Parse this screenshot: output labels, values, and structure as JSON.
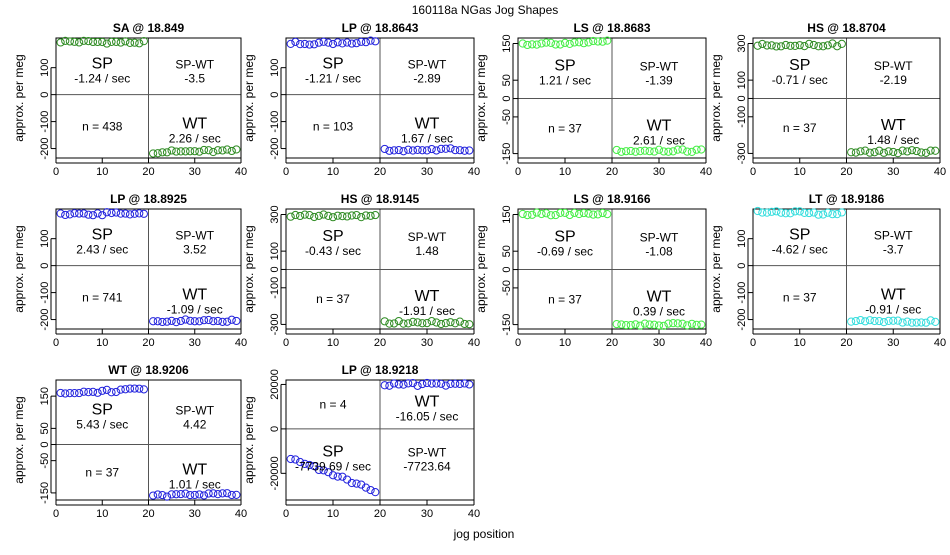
{
  "page_title": "160118a   NGas Jog Shapes",
  "x_axis_label": "jog position",
  "colors": {
    "blue": "#2222dd",
    "darkgreen": "#2e8b22",
    "lightgreen": "#44ee44",
    "cyan": "#33dddd",
    "axis": "#000000",
    "guide": "#555555"
  },
  "chart_data": [
    {
      "type": "scatter",
      "title": "SA @ 18.849",
      "ylabel": "approx. per meg",
      "xlim": [
        0,
        40
      ],
      "ylim": [
        -235,
        210
      ],
      "xticks": [
        0,
        10,
        20,
        30,
        40
      ],
      "yticks": [
        -200,
        -100,
        0,
        100
      ],
      "color": "darkgreen",
      "sp_segment": {
        "x": [
          1,
          19
        ],
        "y": [
          197,
          193
        ]
      },
      "wt_segment": {
        "x": [
          21,
          39
        ],
        "y": [
          -213,
          -208
        ]
      },
      "sp_label": "SP",
      "sp_slope": "-1.24 / sec",
      "spwt_label": "SP-WT",
      "spwt_value": "-3.5",
      "n_text": "n = 438",
      "wt_label": "WT",
      "wt_slope": "2.26 / sec",
      "label_layout": "standard"
    },
    {
      "type": "scatter",
      "title": "LP @ 18.8643",
      "ylabel": "approx. per meg",
      "xlim": [
        0,
        40
      ],
      "ylim": [
        -235,
        210
      ],
      "xticks": [
        0,
        10,
        20,
        30,
        40
      ],
      "yticks": [
        -200,
        -100,
        0,
        100
      ],
      "color": "blue",
      "sp_segment": {
        "x": [
          1,
          19
        ],
        "y": [
          190,
          195
        ]
      },
      "wt_segment": {
        "x": [
          21,
          39
        ],
        "y": [
          -206,
          -204
        ]
      },
      "sp_label": "SP",
      "sp_slope": "-1.21 / sec",
      "spwt_label": "SP-WT",
      "spwt_value": "-2.89",
      "n_text": "n = 103",
      "wt_label": "WT",
      "wt_slope": "1.67 / sec",
      "label_layout": "standard"
    },
    {
      "type": "scatter",
      "title": "LS @ 18.8683",
      "ylabel": "approx. per meg",
      "xlim": [
        0,
        40
      ],
      "ylim": [
        -162,
        165
      ],
      "xticks": [
        0,
        10,
        20,
        30,
        40
      ],
      "yticks": [
        -150,
        -50,
        0,
        50,
        150
      ],
      "color": "lightgreen",
      "sp_segment": {
        "x": [
          1,
          19
        ],
        "y": [
          149,
          154
        ]
      },
      "wt_segment": {
        "x": [
          21,
          39
        ],
        "y": [
          -144,
          -142
        ]
      },
      "sp_label": "SP",
      "sp_slope": "1.21 / sec",
      "spwt_label": "SP-WT",
      "spwt_value": "-1.39",
      "n_text": "n = 37",
      "wt_label": "WT",
      "wt_slope": "2.61 / sec",
      "label_layout": "standard"
    },
    {
      "type": "scatter",
      "title": "HS @ 18.8704",
      "ylabel": "approx. per meg",
      "xlim": [
        0,
        40
      ],
      "ylim": [
        -325,
        330
      ],
      "xticks": [
        0,
        10,
        20,
        30,
        40
      ],
      "yticks": [
        -300,
        -100,
        0,
        100,
        300
      ],
      "color": "darkgreen",
      "sp_segment": {
        "x": [
          1,
          19
        ],
        "y": [
          291,
          293
        ]
      },
      "wt_segment": {
        "x": [
          21,
          39
        ],
        "y": [
          -293,
          -289
        ]
      },
      "sp_label": "SP",
      "sp_slope": "-0.71 / sec",
      "spwt_label": "SP-WT",
      "spwt_value": "-2.19",
      "n_text": "n = 37",
      "wt_label": "WT",
      "wt_slope": "1.48 / sec",
      "label_layout": "standard"
    },
    {
      "type": "scatter",
      "title": "LP @ 18.8925",
      "ylabel": "approx. per meg",
      "xlim": [
        0,
        40
      ],
      "ylim": [
        -235,
        210
      ],
      "xticks": [
        0,
        10,
        20,
        30,
        40
      ],
      "yticks": [
        -200,
        -100,
        0,
        100
      ],
      "color": "blue",
      "sp_segment": {
        "x": [
          1,
          19
        ],
        "y": [
          188,
          196
        ]
      },
      "wt_segment": {
        "x": [
          21,
          39
        ],
        "y": [
          -204,
          -206
        ]
      },
      "sp_label": "SP",
      "sp_slope": "2.43 / sec",
      "spwt_label": "SP-WT",
      "spwt_value": "3.52",
      "n_text": "n = 741",
      "wt_label": "WT",
      "wt_slope": "-1.09 / sec",
      "label_layout": "standard"
    },
    {
      "type": "scatter",
      "title": "HS @ 18.9145",
      "ylabel": "approx. per meg",
      "xlim": [
        0,
        40
      ],
      "ylim": [
        -325,
        330
      ],
      "xticks": [
        0,
        10,
        20,
        30,
        40
      ],
      "yticks": [
        -300,
        -100,
        0,
        100,
        300
      ],
      "color": "darkgreen",
      "sp_segment": {
        "x": [
          1,
          19
        ],
        "y": [
          292,
          292
        ]
      },
      "wt_segment": {
        "x": [
          21,
          39
        ],
        "y": [
          -288,
          -292
        ]
      },
      "sp_label": "SP",
      "sp_slope": "-0.43 / sec",
      "spwt_label": "SP-WT",
      "spwt_value": "1.48",
      "n_text": "n = 37",
      "wt_label": "WT",
      "wt_slope": "-1.91 / sec",
      "label_layout": "standard"
    },
    {
      "type": "scatter",
      "title": "LS @ 18.9166",
      "ylabel": "approx. per meg",
      "xlim": [
        0,
        40
      ],
      "ylim": [
        -162,
        165
      ],
      "xticks": [
        0,
        10,
        20,
        30,
        40
      ],
      "yticks": [
        -150,
        -50,
        0,
        50,
        150
      ],
      "color": "lightgreen",
      "sp_segment": {
        "x": [
          1,
          19
        ],
        "y": [
          152,
          150
        ]
      },
      "wt_segment": {
        "x": [
          21,
          39
        ],
        "y": [
          -150,
          -150
        ]
      },
      "sp_label": "SP",
      "sp_slope": "-0.69 / sec",
      "spwt_label": "SP-WT",
      "spwt_value": "-1.08",
      "n_text": "n = 37",
      "wt_label": "WT",
      "wt_slope": "0.39 / sec",
      "label_layout": "standard"
    },
    {
      "type": "scatter",
      "title": "LT @ 18.9186",
      "ylabel": "approx. per meg",
      "xlim": [
        0,
        40
      ],
      "ylim": [
        -235,
        210
      ],
      "xticks": [
        0,
        10,
        20,
        30,
        40
      ],
      "yticks": [
        -200,
        -100,
        0,
        100
      ],
      "color": "cyan",
      "sp_segment": {
        "x": [
          1,
          19
        ],
        "y": [
          200,
          192
        ]
      },
      "wt_segment": {
        "x": [
          21,
          39
        ],
        "y": [
          -206,
          -208
        ]
      },
      "sp_label": "SP",
      "sp_slope": "-4.62 / sec",
      "spwt_label": "SP-WT",
      "spwt_value": "-3.7",
      "n_text": "n = 37",
      "wt_label": "WT",
      "wt_slope": "-0.91 / sec",
      "label_layout": "standard"
    },
    {
      "type": "scatter",
      "title": "WT @ 18.9206",
      "ylabel": "approx. per meg",
      "xlim": [
        0,
        40
      ],
      "ylim": [
        -172,
        200
      ],
      "xticks": [
        0,
        10,
        20,
        30,
        40
      ],
      "yticks": [
        -150,
        -50,
        0,
        50,
        150
      ],
      "color": "blue",
      "sp_segment": {
        "x": [
          1,
          19
        ],
        "y": [
          158,
          172
        ]
      },
      "wt_segment": {
        "x": [
          21,
          39
        ],
        "y": [
          -158,
          -155
        ]
      },
      "sp_label": "SP",
      "sp_slope": "5.43 / sec",
      "spwt_label": "SP-WT",
      "spwt_value": "4.42",
      "n_text": "n = 37",
      "wt_label": "WT",
      "wt_slope": "1.01 / sec",
      "label_layout": "standard"
    },
    {
      "type": "scatter",
      "title": "LP @ 18.9218",
      "ylabel": "approx. per meg",
      "xlim": [
        0,
        40
      ],
      "ylim": [
        -32000,
        22000
      ],
      "xticks": [
        0,
        10,
        20,
        30,
        40
      ],
      "yticks": [
        -20000,
        0,
        20000
      ],
      "color": "blue",
      "sp_segment": {
        "x": [
          1,
          19
        ],
        "y": [
          -13000,
          -28000
        ]
      },
      "wt_segment": {
        "x": [
          21,
          39
        ],
        "y": [
          20000,
          20000
        ]
      },
      "sp_label": "SP",
      "sp_slope": "-7739.69 / sec",
      "spwt_label": "SP-WT",
      "spwt_value": "-7723.64",
      "n_text": "n = 4",
      "wt_label": "WT",
      "wt_slope": "-16.05 / sec",
      "label_layout": "inverted"
    }
  ]
}
